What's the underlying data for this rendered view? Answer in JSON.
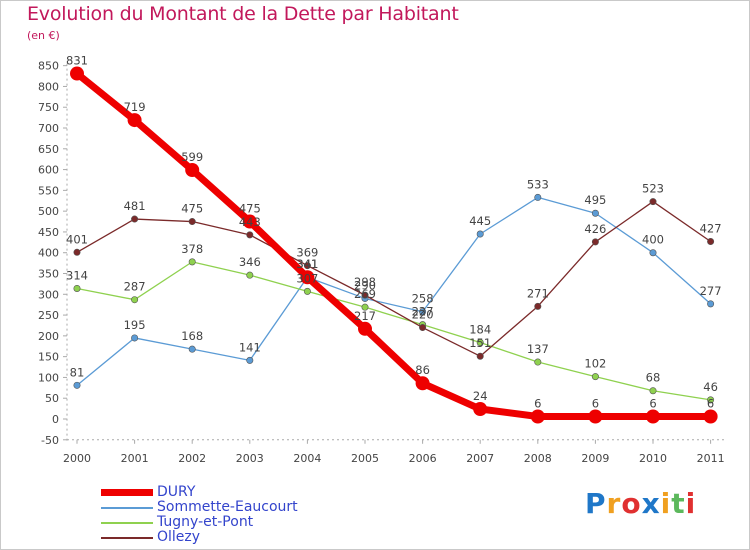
{
  "chart_data": {
    "type": "line",
    "title": "Evolution du Montant de la Dette par Habitant",
    "subtitle": "(en €)",
    "xlabel": "",
    "ylabel": "",
    "categories": [
      "2000",
      "2001",
      "2002",
      "2003",
      "2004",
      "2005",
      "2006",
      "2007",
      "2008",
      "2009",
      "2010",
      "2011"
    ],
    "ylim": [
      -50,
      850
    ],
    "yticks": [
      -50,
      0,
      50,
      100,
      150,
      200,
      250,
      300,
      350,
      400,
      450,
      500,
      550,
      600,
      650,
      700,
      750,
      800,
      850
    ],
    "grid": false,
    "legend_position": "bottom-left",
    "series": [
      {
        "name": "DURY",
        "color": "#ee0000",
        "values": [
          831,
          719,
          599,
          475,
          341,
          217,
          86,
          24,
          6,
          6,
          6,
          6
        ],
        "labels": [
          "831",
          "719",
          "599",
          "475",
          "341",
          "217",
          "86",
          "24",
          "6",
          "6",
          "6",
          "6"
        ]
      },
      {
        "name": "Sommette-Eaucourt",
        "color": "#5b9bd5",
        "values": [
          81,
          195,
          168,
          141,
          341,
          290,
          258,
          445,
          533,
          495,
          400,
          277
        ],
        "labels": [
          "81",
          "195",
          "168",
          "141",
          "341",
          "290",
          "258",
          "445",
          "533",
          "495",
          "400",
          "277"
        ]
      },
      {
        "name": "Tugny-et-Pont",
        "color": "#8fd14f",
        "values": [
          314,
          287,
          378,
          346,
          307,
          269,
          227,
          184,
          137,
          102,
          68,
          46
        ],
        "labels": [
          "314",
          "287",
          "378",
          "346",
          "307",
          "269",
          "227",
          "184",
          "137",
          "102",
          "68",
          "46"
        ]
      },
      {
        "name": "Ollezy",
        "color": "#7b2a2a",
        "values": [
          401,
          481,
          475,
          443,
          369,
          298,
          220,
          151,
          271,
          426,
          523,
          427
        ],
        "labels": [
          "401",
          "481",
          "475",
          "443",
          "369",
          "298",
          "220",
          "151",
          "271",
          "426",
          "523",
          "427"
        ]
      }
    ]
  },
  "brand": {
    "text": "Proxiti",
    "colors": [
      "#1f77c8",
      "#f0a020",
      "#e03030",
      "#1f77c8",
      "#f0a020",
      "#5cb85c",
      "#e03030"
    ]
  }
}
